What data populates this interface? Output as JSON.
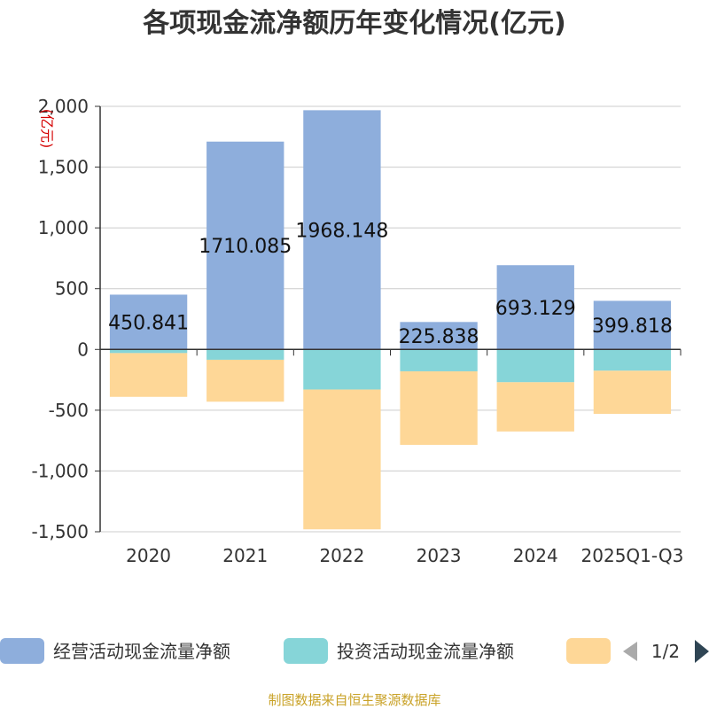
{
  "chart_data": {
    "type": "bar",
    "stacked": true,
    "title": "各项现金流净额历年变化情况(亿元)",
    "ylabel": "(亿元)",
    "xlabel": "",
    "categories": [
      "2020",
      "2021",
      "2022",
      "2023",
      "2024",
      "2025Q1-Q3"
    ],
    "ylim": [
      -1500,
      2000
    ],
    "yticks": [
      -1500,
      -1000,
      -500,
      0,
      500,
      1000,
      1500,
      2000
    ],
    "ytick_labels": [
      "-1,500",
      "-1,000",
      "-500",
      "0",
      "500",
      "1,000",
      "1,500",
      "2,000"
    ],
    "grid": true,
    "series": [
      {
        "name": "经营活动现金流量净额",
        "color": "#8eaedc",
        "values": [
          450.841,
          1710.085,
          1968.148,
          225.838,
          693.129,
          399.818
        ],
        "labels": [
          "450.841",
          "1710.085",
          "1968.148",
          "225.838",
          "693.129",
          "399.818"
        ]
      },
      {
        "name": "投资活动现金流量净额",
        "color": "#86d5d8",
        "values": [
          -30,
          -85,
          -330,
          -180,
          -270,
          -175
        ]
      },
      {
        "name": "",
        "color": "#fed797",
        "values": [
          -360,
          -345,
          -1150,
          -605,
          -405,
          -355
        ]
      }
    ],
    "legend_position": "bottom",
    "source": "制图数据来自恒生聚源数据库"
  },
  "pager": {
    "text": "1/2"
  }
}
